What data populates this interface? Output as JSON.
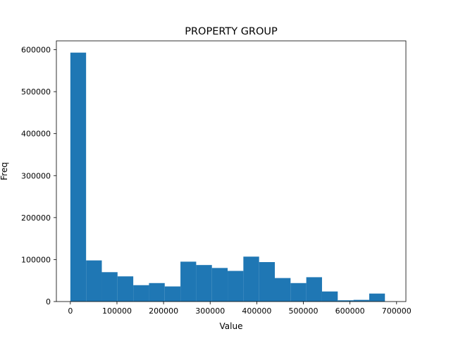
{
  "chart_data": {
    "type": "bar",
    "title": "PROPERTY GROUP",
    "xlabel": "Value",
    "ylabel": "Freq",
    "xlim": [
      -30000,
      720000
    ],
    "ylim": [
      0,
      621000
    ],
    "grid": false,
    "bar_color": "#1f77b4",
    "xticks": [
      0,
      100000,
      200000,
      300000,
      400000,
      500000,
      600000,
      700000
    ],
    "xtick_labels": [
      "0",
      "100000",
      "200000",
      "300000",
      "400000",
      "500000",
      "600000",
      "700000"
    ],
    "yticks": [
      0,
      100000,
      200000,
      300000,
      400000,
      500000,
      600000
    ],
    "ytick_labels": [
      "0",
      "100000",
      "200000",
      "300000",
      "400000",
      "500000",
      "600000"
    ],
    "bins": [
      {
        "x0": 0,
        "x1": 33750,
        "count": 593000
      },
      {
        "x0": 33750,
        "x1": 67500,
        "count": 98000
      },
      {
        "x0": 67500,
        "x1": 101250,
        "count": 70000
      },
      {
        "x0": 101250,
        "x1": 135000,
        "count": 60000
      },
      {
        "x0": 135000,
        "x1": 168750,
        "count": 39000
      },
      {
        "x0": 168750,
        "x1": 202500,
        "count": 44000
      },
      {
        "x0": 202500,
        "x1": 236250,
        "count": 36000
      },
      {
        "x0": 236250,
        "x1": 270000,
        "count": 95000
      },
      {
        "x0": 270000,
        "x1": 303750,
        "count": 87000
      },
      {
        "x0": 303750,
        "x1": 337500,
        "count": 80000
      },
      {
        "x0": 337500,
        "x1": 371250,
        "count": 73000
      },
      {
        "x0": 371250,
        "x1": 405000,
        "count": 107000
      },
      {
        "x0": 405000,
        "x1": 438750,
        "count": 94000
      },
      {
        "x0": 438750,
        "x1": 472500,
        "count": 56000
      },
      {
        "x0": 472500,
        "x1": 506250,
        "count": 44000
      },
      {
        "x0": 506250,
        "x1": 540000,
        "count": 58000
      },
      {
        "x0": 540000,
        "x1": 573750,
        "count": 24000
      },
      {
        "x0": 573750,
        "x1": 607500,
        "count": 3000
      },
      {
        "x0": 607500,
        "x1": 641250,
        "count": 4000
      },
      {
        "x0": 641250,
        "x1": 675000,
        "count": 19000
      }
    ]
  }
}
